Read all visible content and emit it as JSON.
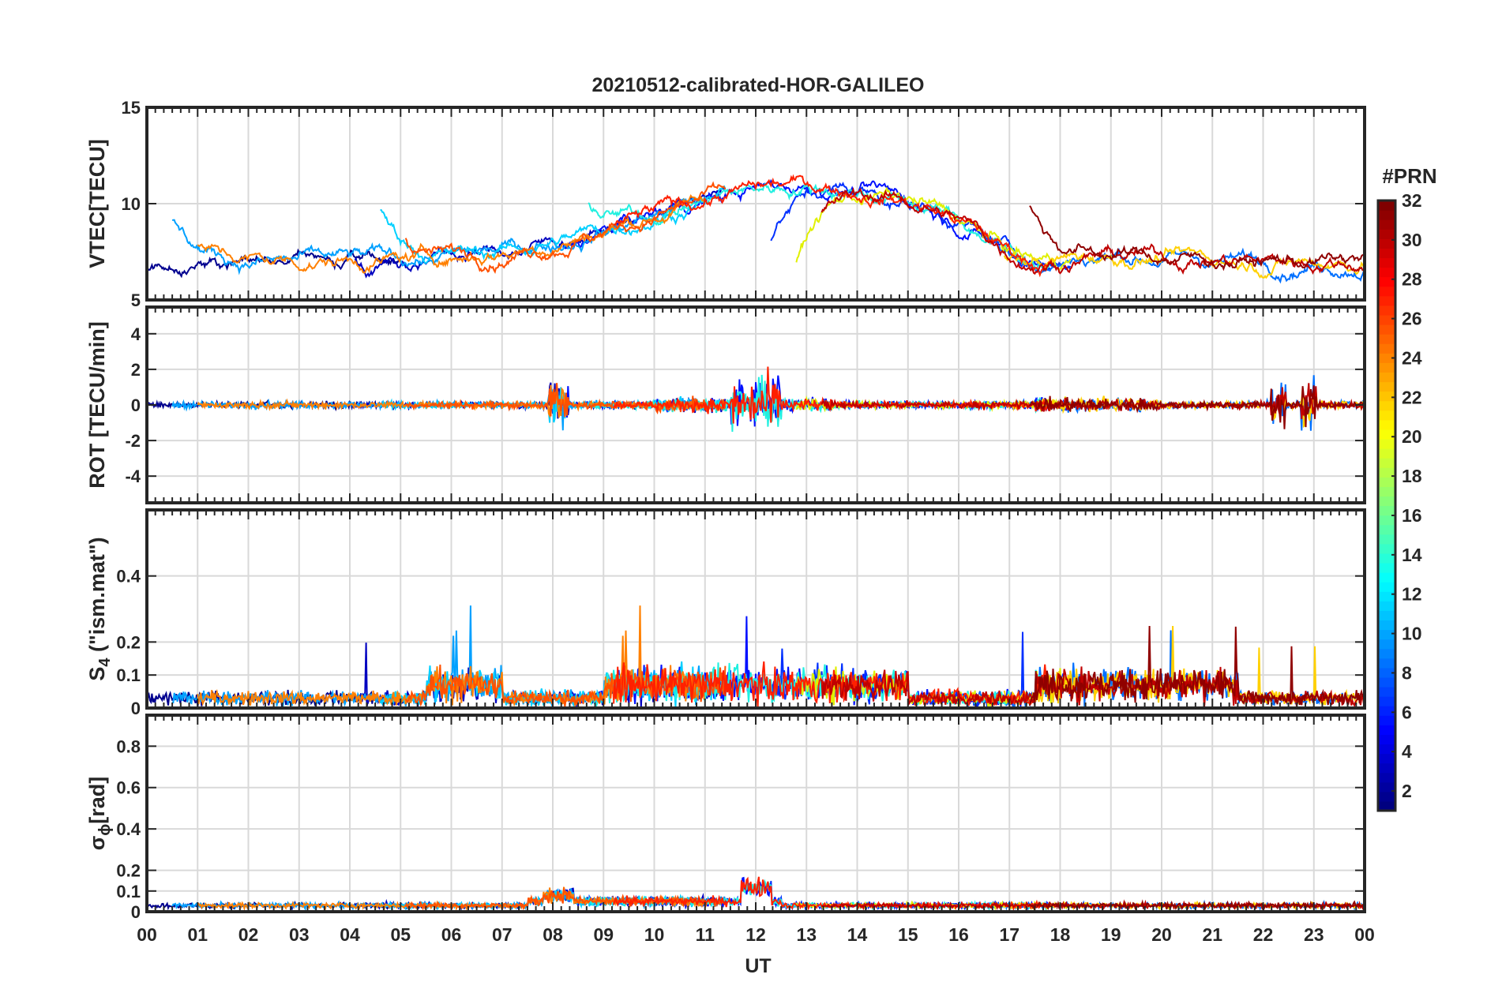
{
  "chart_data": {
    "type": "line",
    "title": "20210512-calibrated-HOR-GALILEO",
    "xlabel": "UT",
    "x_range_hours": [
      0,
      24
    ],
    "x_tick_labels": [
      "00",
      "01",
      "02",
      "03",
      "04",
      "05",
      "06",
      "07",
      "08",
      "09",
      "10",
      "11",
      "12",
      "13",
      "14",
      "15",
      "16",
      "17",
      "18",
      "19",
      "20",
      "21",
      "22",
      "23",
      "00"
    ],
    "grid": true,
    "colorbar": {
      "label": "#PRN",
      "range": [
        1,
        32
      ],
      "colormap": "jet",
      "tick_labels": [
        "2",
        "4",
        "6",
        "8",
        "10",
        "12",
        "14",
        "16",
        "18",
        "20",
        "22",
        "24",
        "26",
        "28",
        "30",
        "32"
      ],
      "tick_values": [
        2,
        4,
        6,
        8,
        10,
        12,
        14,
        16,
        18,
        20,
        22,
        24,
        26,
        28,
        30,
        32
      ],
      "position": "right"
    },
    "panels": [
      {
        "id": "vtec",
        "ylabel": "VTEC[TECU]",
        "ylim": [
          5,
          15
        ],
        "y_ticks": [
          5,
          10,
          15
        ],
        "y_tick_labels": [
          "5",
          "10",
          "15"
        ]
      },
      {
        "id": "rot",
        "ylabel": "ROT [TECU/min]",
        "ylim": [
          -5.5,
          5.5
        ],
        "y_ticks": [
          -4,
          -2,
          0,
          2,
          4
        ],
        "y_tick_labels": [
          "-4",
          "-2",
          "0",
          "2",
          "4"
        ]
      },
      {
        "id": "s4",
        "ylabel_main": "S",
        "ylabel_sub": "4",
        "ylabel_rest": " (\"ism.mat\")",
        "ylim": [
          0,
          0.6
        ],
        "y_ticks": [
          0,
          0.1,
          0.2,
          0.4
        ],
        "y_tick_labels": [
          "0",
          "0.1",
          "0.2",
          "0.4"
        ]
      },
      {
        "id": "sigphi",
        "ylabel_main": "σ",
        "ylabel_sub": "ϕ",
        "ylabel_rest": "[rad]",
        "ylim": [
          0,
          0.95
        ],
        "y_ticks": [
          0,
          0.1,
          0.2,
          0.4,
          0.6,
          0.8
        ],
        "y_tick_labels": [
          "0",
          "0.1",
          "0.2",
          "0.4",
          "0.6",
          "0.8"
        ]
      }
    ],
    "series": [
      {
        "prn": 1,
        "color": "#00008F"
      },
      {
        "prn": 2,
        "color": "#0000C0"
      },
      {
        "prn": 4,
        "color": "#0010FF"
      },
      {
        "prn": 5,
        "color": "#0030FF"
      },
      {
        "prn": 7,
        "color": "#0070FF"
      },
      {
        "prn": 9,
        "color": "#00A0FF"
      },
      {
        "prn": 11,
        "color": "#00D0FF"
      },
      {
        "prn": 12,
        "color": "#20F0E0"
      },
      {
        "prn": 19,
        "color": "#E0F000"
      },
      {
        "prn": 21,
        "color": "#FFD000"
      },
      {
        "prn": 24,
        "color": "#FF8000"
      },
      {
        "prn": 26,
        "color": "#FF5000"
      },
      {
        "prn": 27,
        "color": "#FF2000"
      },
      {
        "prn": 30,
        "color": "#C00000"
      },
      {
        "prn": 31,
        "color": "#900000"
      }
    ]
  }
}
